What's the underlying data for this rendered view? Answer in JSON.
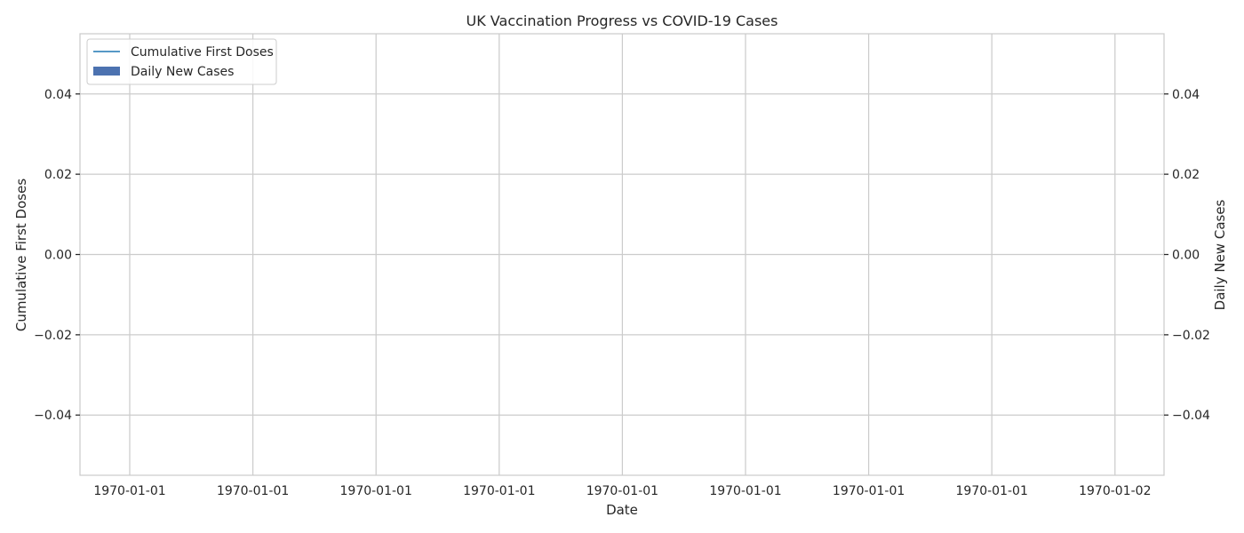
{
  "chart_data": {
    "type": "line",
    "title": "UK Vaccination Progress vs COVID-19 Cases",
    "xlabel": "Date",
    "ylabel_left": "Cumulative First Doses",
    "ylabel_right": "Daily New Cases",
    "x_ticks": [
      "1970-01-01",
      "1970-01-01",
      "1970-01-01",
      "1970-01-01",
      "1970-01-01",
      "1970-01-01",
      "1970-01-01",
      "1970-01-01",
      "1970-01-02"
    ],
    "y_left_ticks": [
      "0.04",
      "0.02",
      "0.00",
      "−0.02",
      "−0.04"
    ],
    "y_right_ticks": [
      "0.04",
      "0.02",
      "0.00",
      "−0.02",
      "−0.04"
    ],
    "ylim_left": [
      -0.055,
      0.055
    ],
    "ylim_right": [
      -0.055,
      0.055
    ],
    "grid": true,
    "legend_position": "top-left",
    "series": [
      {
        "name": "Cumulative First Doses",
        "kind": "line",
        "axis": "left",
        "color": "#1f77b4",
        "x": [],
        "values": []
      },
      {
        "name": "Daily New Cases",
        "kind": "bar",
        "axis": "right",
        "color": "#4c72b0",
        "x": [],
        "values": []
      }
    ],
    "colors": {
      "left_axis": "#1f77b4",
      "right_axis": "#ff7f0e"
    }
  }
}
